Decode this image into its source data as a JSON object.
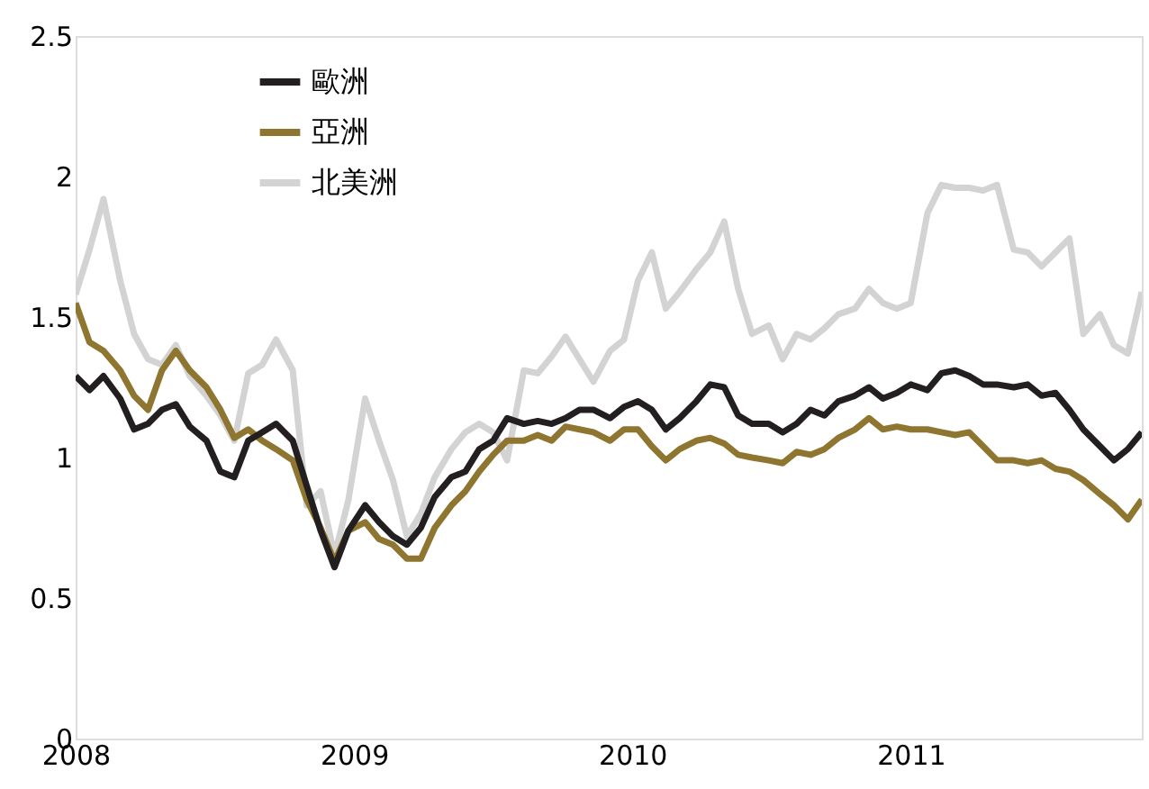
{
  "chart_data": {
    "type": "line",
    "x": [
      2008.0,
      2008.05,
      2008.1,
      2008.16,
      2008.21,
      2008.26,
      2008.31,
      2008.36,
      2008.41,
      2008.47,
      2008.52,
      2008.57,
      2008.62,
      2008.67,
      2008.72,
      2008.78,
      2008.83,
      2008.88,
      2008.93,
      2008.98,
      2009.04,
      2009.09,
      2009.14,
      2009.19,
      2009.24,
      2009.29,
      2009.35,
      2009.4,
      2009.45,
      2009.5,
      2009.55,
      2009.61,
      2009.66,
      2009.71,
      2009.76,
      2009.81,
      2009.86,
      2009.92,
      2009.97,
      2010.02,
      2010.07,
      2010.12,
      2010.17,
      2010.23,
      2010.28,
      2010.33,
      2010.38,
      2010.43,
      2010.49,
      2010.54,
      2010.59,
      2010.64,
      2010.69,
      2010.74,
      2010.8,
      2010.85,
      2010.9,
      2010.95,
      2011.0,
      2011.06,
      2011.11,
      2011.16,
      2011.21,
      2011.26,
      2011.31,
      2011.37,
      2011.42,
      2011.47,
      2011.52,
      2011.57,
      2011.62,
      2011.68,
      2011.73,
      2011.78,
      2011.83
    ],
    "series": [
      {
        "name": "歐洲",
        "color": "#231f20",
        "values": [
          1.29,
          1.24,
          1.29,
          1.21,
          1.1,
          1.12,
          1.17,
          1.19,
          1.11,
          1.06,
          0.95,
          0.93,
          1.06,
          1.09,
          1.12,
          1.06,
          0.9,
          0.74,
          0.61,
          0.74,
          0.83,
          0.77,
          0.72,
          0.69,
          0.75,
          0.86,
          0.93,
          0.95,
          1.03,
          1.06,
          1.14,
          1.12,
          1.13,
          1.12,
          1.14,
          1.17,
          1.17,
          1.14,
          1.18,
          1.2,
          1.17,
          1.1,
          1.14,
          1.2,
          1.26,
          1.25,
          1.15,
          1.12,
          1.12,
          1.09,
          1.12,
          1.17,
          1.15,
          1.2,
          1.22,
          1.25,
          1.21,
          1.23,
          1.26,
          1.24,
          1.3,
          1.31,
          1.29,
          1.26,
          1.26,
          1.25,
          1.26,
          1.22,
          1.23,
          1.17,
          1.1,
          1.04,
          0.99,
          1.03,
          1.09
        ]
      },
      {
        "name": "亞洲",
        "color": "#8f7630",
        "values": [
          1.55,
          1.41,
          1.38,
          1.31,
          1.22,
          1.17,
          1.31,
          1.38,
          1.31,
          1.25,
          1.17,
          1.07,
          1.1,
          1.06,
          1.03,
          0.99,
          0.85,
          0.75,
          0.63,
          0.74,
          0.77,
          0.71,
          0.69,
          0.64,
          0.64,
          0.75,
          0.83,
          0.88,
          0.95,
          1.01,
          1.06,
          1.06,
          1.08,
          1.06,
          1.11,
          1.1,
          1.09,
          1.06,
          1.1,
          1.1,
          1.04,
          0.99,
          1.03,
          1.06,
          1.07,
          1.05,
          1.01,
          1.0,
          0.99,
          0.98,
          1.02,
          1.01,
          1.03,
          1.07,
          1.1,
          1.14,
          1.1,
          1.11,
          1.1,
          1.1,
          1.09,
          1.08,
          1.09,
          1.04,
          0.99,
          0.99,
          0.98,
          0.99,
          0.96,
          0.95,
          0.92,
          0.87,
          0.83,
          0.78,
          0.85
        ]
      },
      {
        "name": "北美洲",
        "color": "#d3d3d3",
        "values": [
          1.58,
          1.74,
          1.92,
          1.63,
          1.44,
          1.35,
          1.33,
          1.4,
          1.29,
          1.22,
          1.15,
          1.06,
          1.3,
          1.33,
          1.42,
          1.31,
          0.83,
          0.88,
          0.65,
          0.85,
          1.21,
          1.06,
          0.92,
          0.72,
          0.8,
          0.93,
          1.03,
          1.09,
          1.12,
          1.09,
          0.99,
          1.31,
          1.3,
          1.36,
          1.43,
          1.35,
          1.27,
          1.38,
          1.42,
          1.63,
          1.73,
          1.53,
          1.59,
          1.67,
          1.73,
          1.84,
          1.6,
          1.44,
          1.47,
          1.35,
          1.44,
          1.42,
          1.46,
          1.51,
          1.53,
          1.6,
          1.55,
          1.53,
          1.55,
          1.87,
          1.97,
          1.96,
          1.96,
          1.95,
          1.97,
          1.74,
          1.73,
          1.68,
          1.73,
          1.78,
          1.44,
          1.51,
          1.4,
          1.37,
          1.59
        ]
      }
    ],
    "xlim": [
      2008,
      2011.83
    ],
    "xticks": [
      2008,
      2009,
      2010,
      2011
    ],
    "ylim": [
      0,
      2.5
    ],
    "yticks": [
      0,
      0.5,
      1,
      1.5,
      2,
      2.5
    ],
    "grid": false,
    "legend": "top left",
    "marker": "none",
    "line_style": "solid"
  }
}
